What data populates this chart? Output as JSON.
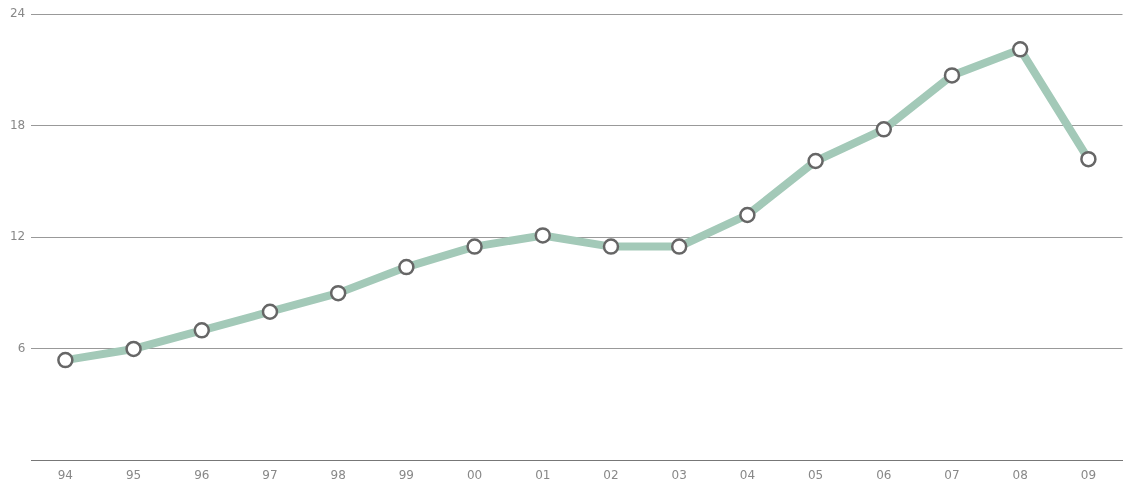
{
  "chart_data": {
    "type": "line",
    "categories": [
      "94",
      "95",
      "96",
      "97",
      "98",
      "99",
      "00",
      "01",
      "02",
      "03",
      "04",
      "05",
      "06",
      "07",
      "08",
      "09"
    ],
    "series": [
      {
        "color": "#a3c9b8",
        "values": [
          5.4,
          6.0,
          7.0,
          8.0,
          9.0,
          10.4,
          11.5,
          12.1,
          11.5,
          11.5,
          13.2,
          16.1,
          17.8,
          20.7,
          22.1,
          16.2
        ]
      }
    ],
    "ylim": [
      0,
      24
    ],
    "yticks": [
      6,
      12,
      18,
      24
    ],
    "grid": "y",
    "legend": false,
    "marker": "circle",
    "line_style": "solid"
  }
}
